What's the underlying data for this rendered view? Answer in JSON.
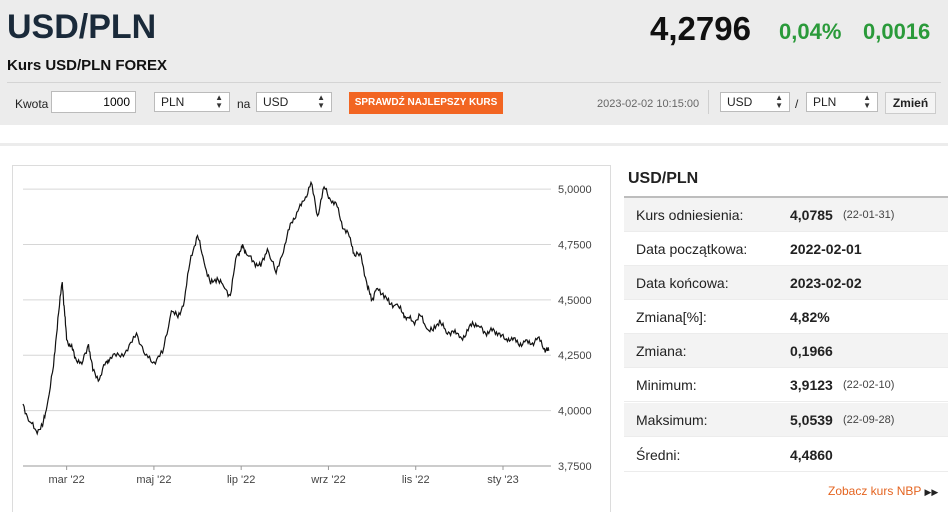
{
  "header": {
    "pair": "USD/PLN",
    "subtitle": "Kurs USD/PLN FOREX",
    "rate": "4,2796",
    "change_pct": "0,04%",
    "change_abs": "0,0016",
    "accent_color": "#2a9a3a"
  },
  "converter": {
    "amount_label": "Kwota",
    "amount_value": "1000",
    "from_currency": "PLN",
    "to_label": "na",
    "to_currency": "USD",
    "best_rate_button": "SPRAWDŹ NAJLEPSZY KURS",
    "button_color": "#f26522"
  },
  "pair_selector": {
    "timestamp": "2023-02-02 10:15:00",
    "base": "USD",
    "separator": "/",
    "quote": "PLN",
    "change_button": "Zmień"
  },
  "sidebar": {
    "title": "USD/PLN",
    "rows": [
      {
        "label": "Kurs odniesienia:",
        "value": "4,0785",
        "date": "(22-01-31)"
      },
      {
        "label": "Data początkowa:",
        "value": "2022-02-01",
        "date": ""
      },
      {
        "label": "Data końcowa:",
        "value": "2023-02-02",
        "date": ""
      },
      {
        "label": "Zmiana[%]:",
        "value": "4,82%",
        "date": ""
      },
      {
        "label": "Zmiana:",
        "value": "0,1966",
        "date": ""
      },
      {
        "label": "Minimum:",
        "value": "3,9123",
        "date": "(22-02-10)"
      },
      {
        "label": "Maksimum:",
        "value": "5,0539",
        "date": "(22-09-28)"
      },
      {
        "label": "Średni:",
        "value": "4,4860",
        "date": ""
      }
    ],
    "nbp_link": "Zobacz kurs NBP",
    "nbp_icon": "double-chevron-right-icon"
  },
  "chart_data": {
    "type": "line",
    "ylim": [
      3.75,
      5.05
    ],
    "y_ticks": [
      5.0,
      4.75,
      4.5,
      4.25,
      4.0,
      3.75
    ],
    "y_tick_labels": [
      "5,0000",
      "4,7500",
      "4,5000",
      "4,2500",
      "4,0000",
      "3,7500"
    ],
    "x_tick_labels": [
      "mar '22",
      "maj '22",
      "lip '22",
      "wrz '22",
      "lis '22",
      "sty '23"
    ],
    "x_tick_months": [
      1,
      3,
      5,
      7,
      9,
      11
    ],
    "grid": true,
    "series": [
      {
        "x": [
          0.0,
          0.15,
          0.3,
          0.45,
          0.55,
          0.7,
          0.8,
          0.9,
          0.95,
          1.0,
          1.1,
          1.2,
          1.35,
          1.5,
          1.6,
          1.75,
          1.9,
          2.0,
          2.2,
          2.4,
          2.6,
          2.8,
          3.0,
          3.2,
          3.4,
          3.55,
          3.7,
          3.85,
          4.0,
          4.15,
          4.3,
          4.45,
          4.6,
          4.75,
          4.9,
          5.0,
          5.05,
          5.15,
          5.3,
          5.45,
          5.6,
          5.8,
          6.0,
          6.15,
          6.3,
          6.45,
          6.6,
          6.75,
          6.9,
          7.05,
          7.2,
          7.35,
          7.5,
          7.6,
          7.75,
          7.9,
          8.0,
          8.1,
          8.25,
          8.4,
          8.55,
          8.7,
          8.8,
          8.95,
          9.1,
          9.25,
          9.4,
          9.55,
          9.7,
          9.85,
          10.0,
          10.15,
          10.3,
          10.45,
          10.6,
          10.75,
          10.9,
          11.05,
          11.2,
          11.35,
          11.5,
          11.65,
          11.8,
          11.95,
          12.05
        ],
        "values": [
          4.03,
          3.95,
          3.91,
          3.93,
          4.02,
          4.2,
          4.42,
          4.58,
          4.45,
          4.32,
          4.29,
          4.24,
          4.21,
          4.3,
          4.18,
          4.14,
          4.22,
          4.24,
          4.25,
          4.27,
          4.35,
          4.25,
          4.22,
          4.26,
          4.45,
          4.42,
          4.5,
          4.7,
          4.79,
          4.67,
          4.57,
          4.6,
          4.56,
          4.52,
          4.7,
          4.73,
          4.74,
          4.7,
          4.67,
          4.65,
          4.73,
          4.62,
          4.75,
          4.85,
          4.9,
          4.95,
          5.03,
          4.88,
          5.01,
          4.95,
          4.92,
          4.82,
          4.78,
          4.7,
          4.7,
          4.55,
          4.5,
          4.55,
          4.53,
          4.48,
          4.48,
          4.44,
          4.42,
          4.4,
          4.43,
          4.37,
          4.36,
          4.41,
          4.35,
          4.36,
          4.33,
          4.34,
          4.4,
          4.38,
          4.35,
          4.36,
          4.35,
          4.32,
          4.33,
          4.3,
          4.31,
          4.3,
          4.33,
          4.28,
          4.27
        ]
      }
    ]
  }
}
